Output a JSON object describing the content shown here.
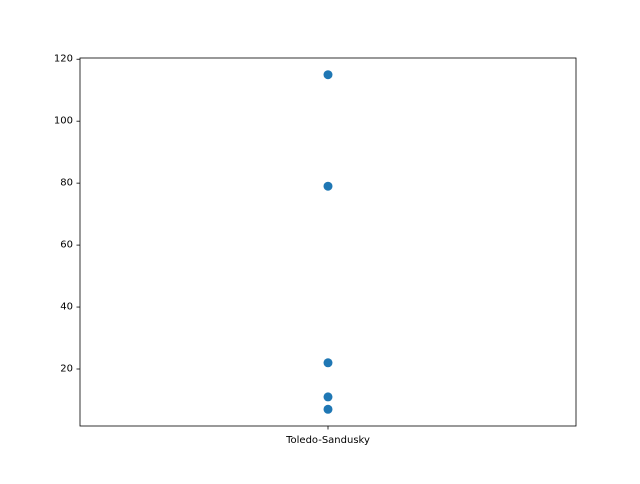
{
  "chart_data": {
    "type": "scatter",
    "title": "",
    "xlabel": "",
    "ylabel": "",
    "categories": [
      "Toledo-Sandusky"
    ],
    "series": [
      {
        "x": [
          "Toledo-Sandusky",
          "Toledo-Sandusky",
          "Toledo-Sandusky",
          "Toledo-Sandusky",
          "Toledo-Sandusky"
        ],
        "y": [
          115,
          79,
          22,
          11,
          7
        ]
      }
    ],
    "ylim": [
      1.6,
      120.4
    ],
    "yticks": [
      20,
      40,
      60,
      80,
      100,
      120
    ],
    "grid": false,
    "colors": {
      "marker": "#1f77b4",
      "axes": "#000000",
      "background": "#ffffff"
    }
  }
}
